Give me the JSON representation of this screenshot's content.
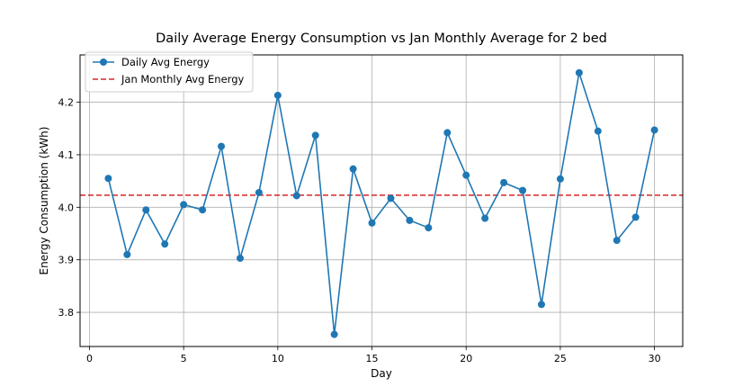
{
  "chart_data": {
    "type": "line",
    "title": "Daily Average Energy Consumption vs Jan Monthly Average for 2 bed",
    "xlabel": "Day",
    "ylabel": "Energy Consumption (kWh)",
    "xlim": [
      -0.5,
      31.5
    ],
    "ylim": [
      3.735,
      4.29
    ],
    "xticks": [
      0,
      5,
      10,
      15,
      20,
      25,
      30
    ],
    "yticks": [
      3.8,
      3.9,
      4.0,
      4.1,
      4.2
    ],
    "grid": true,
    "legend": "top-left",
    "series": [
      {
        "name": "Daily Avg Energy",
        "color": "#1f77b4",
        "marker": "circle",
        "x": [
          1,
          2,
          3,
          4,
          5,
          6,
          7,
          8,
          9,
          10,
          11,
          12,
          13,
          14,
          15,
          16,
          17,
          18,
          19,
          20,
          21,
          22,
          23,
          24,
          25,
          26,
          27,
          28,
          29,
          30
        ],
        "y": [
          4.055,
          3.91,
          3.995,
          3.93,
          4.005,
          3.995,
          4.116,
          3.903,
          4.028,
          4.213,
          4.022,
          4.137,
          3.758,
          4.073,
          3.97,
          4.017,
          3.975,
          3.961,
          4.142,
          4.061,
          3.979,
          4.047,
          4.032,
          3.815,
          4.054,
          4.256,
          4.145,
          3.937,
          3.981,
          4.147
        ]
      }
    ],
    "reference_lines": [
      {
        "name": "Jan Monthly Avg Energy",
        "color": "#d62728",
        "style": "dashed",
        "y": 4.023
      }
    ]
  }
}
